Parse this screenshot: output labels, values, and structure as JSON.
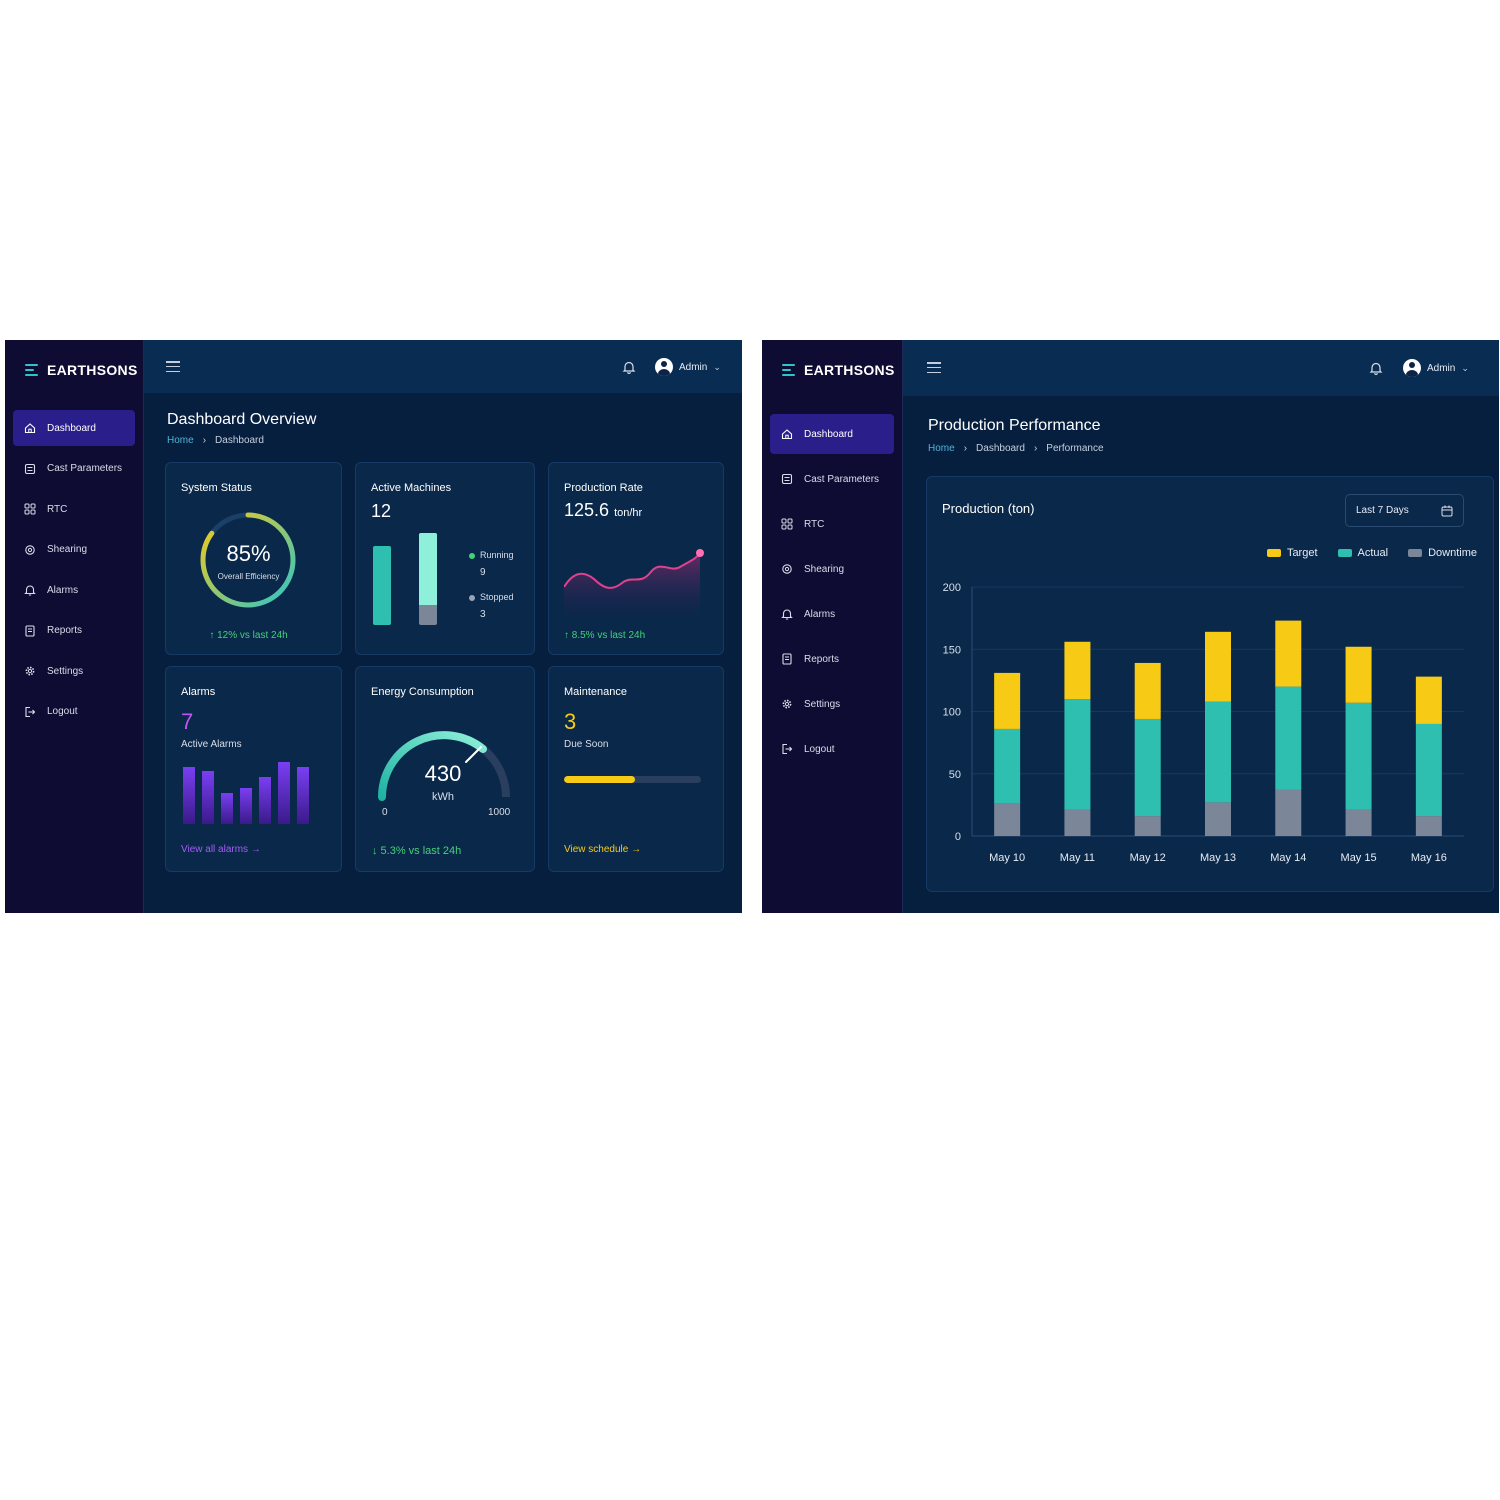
{
  "brand": "EARTHSONS",
  "nav": [
    "Dashboard",
    "Cast Parameters",
    "RTC",
    "Shearing",
    "Alarms",
    "Reports",
    "Settings",
    "Logout"
  ],
  "user": {
    "name": "Admin"
  },
  "overview": {
    "title": "Dashboard Overview",
    "breadcrumb": [
      "Home",
      "Dashboard"
    ],
    "system_status": {
      "title": "System Status",
      "value": "85%",
      "caption": "Overall Efficiency",
      "percent": 85,
      "trend": "↑ 12% vs last 24h"
    },
    "active_machines": {
      "title": "Active Machines",
      "count": "12",
      "running_label": "Running",
      "running": "9",
      "stopped_label": "Stopped",
      "stopped": "3"
    },
    "production_rate": {
      "title": "Production Rate",
      "value": "125.6",
      "unit": "ton/hr",
      "trend": "↑ 8.5% vs last 24h"
    },
    "alarms": {
      "title": "Alarms",
      "count": "7",
      "caption": "Active Alarms",
      "link": "View all alarms →"
    },
    "energy": {
      "title": "Energy Consumption",
      "value": "430",
      "unit": "kWh",
      "min": "0",
      "max": "1000",
      "trend": "↓ 5.3% vs last 24h"
    },
    "maintenance": {
      "title": "Maintenance",
      "count": "3",
      "caption": "Due Soon",
      "progress": 0.52,
      "link": "View schedule →"
    }
  },
  "performance": {
    "title": "Production Performance",
    "breadcrumb": [
      "Home",
      "Dashboard",
      "Performance"
    ],
    "card_title": "Production (ton)",
    "range": "Last 7 Days"
  },
  "chart_data": {
    "type": "bar",
    "stacked": true,
    "categories": [
      "May 10",
      "May 11",
      "May 12",
      "May 13",
      "May 14",
      "May 15",
      "May 16"
    ],
    "series": [
      {
        "name": "Downtime",
        "color": "#7b8699",
        "values": [
          26,
          21,
          16,
          27,
          37,
          21,
          16
        ]
      },
      {
        "name": "Actual",
        "color": "#2ebfb0",
        "values": [
          60,
          89,
          78,
          81,
          83,
          86,
          74
        ]
      },
      {
        "name": "Target",
        "color": "#f7cb15",
        "values": [
          45,
          46,
          45,
          56,
          53,
          45,
          38
        ]
      }
    ],
    "legend_order": [
      "Target",
      "Actual",
      "Downtime"
    ],
    "yticks": [
      0,
      50,
      100,
      150,
      200
    ],
    "ylim": [
      0,
      200
    ],
    "legend": "top-right",
    "grid": true
  }
}
